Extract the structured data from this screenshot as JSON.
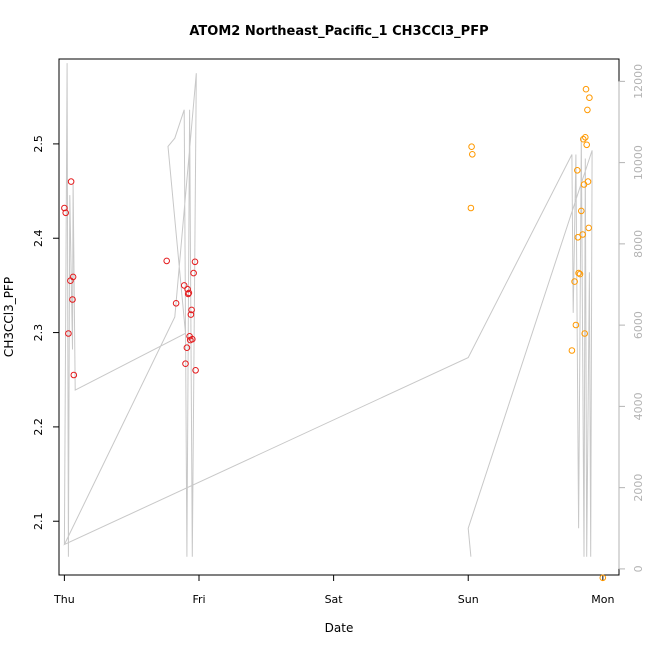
{
  "chart_data": {
    "type": "scatter",
    "title": "ATOM2 Northeast_Pacific_1 CH3CCl3_PFP",
    "xlabel": "Date",
    "ylabel": "CH3CCl3_PFP",
    "x_ticks": [
      "Thu",
      "Fri",
      "Sat",
      "Sun",
      "Mon"
    ],
    "x_range": [
      -0.04,
      4.12
    ],
    "ylim": [
      2.043,
      2.59
    ],
    "y_ticks": [
      2.1,
      2.2,
      2.3,
      2.4,
      2.5
    ],
    "y2lim": [
      -150,
      12550
    ],
    "y2_ticks": [
      0,
      2000,
      4000,
      6000,
      8000,
      10000,
      12000
    ],
    "colors": {
      "series1": "#e41a1c",
      "series2": "#ff9900",
      "altitude": "#c8c8c8",
      "axis": "#000000",
      "axis2": "#b3b3b3"
    },
    "series": [
      {
        "color": "#e41a1c",
        "points": [
          [
            0.0,
            2.432
          ],
          [
            0.01,
            2.427
          ],
          [
            0.03,
            2.299
          ],
          [
            0.045,
            2.355
          ],
          [
            0.05,
            2.46
          ],
          [
            0.06,
            2.335
          ],
          [
            0.065,
            2.359
          ],
          [
            0.07,
            2.255
          ],
          [
            0.76,
            2.376
          ],
          [
            0.83,
            2.331
          ],
          [
            0.89,
            2.35
          ],
          [
            0.9,
            2.267
          ],
          [
            0.91,
            2.284
          ],
          [
            0.915,
            2.346
          ],
          [
            0.92,
            2.341
          ],
          [
            0.925,
            2.342
          ],
          [
            0.93,
            2.296
          ],
          [
            0.935,
            2.292
          ],
          [
            0.94,
            2.319
          ],
          [
            0.945,
            2.324
          ],
          [
            0.95,
            2.293
          ],
          [
            0.96,
            2.363
          ],
          [
            0.97,
            2.375
          ],
          [
            0.975,
            2.26
          ]
        ]
      },
      {
        "color": "#ff9900",
        "points": [
          [
            3.02,
            2.432
          ],
          [
            3.025,
            2.497
          ],
          [
            3.03,
            2.489
          ],
          [
            3.77,
            2.281
          ],
          [
            3.79,
            2.354
          ],
          [
            3.8,
            2.308
          ],
          [
            3.81,
            2.472
          ],
          [
            3.815,
            2.401
          ],
          [
            3.82,
            2.363
          ],
          [
            3.83,
            2.362
          ],
          [
            3.84,
            2.429
          ],
          [
            3.85,
            2.404
          ],
          [
            3.855,
            2.505
          ],
          [
            3.86,
            2.457
          ],
          [
            3.865,
            2.299
          ],
          [
            3.87,
            2.507
          ],
          [
            3.875,
            2.558
          ],
          [
            3.88,
            2.499
          ],
          [
            3.885,
            2.536
          ],
          [
            3.89,
            2.46
          ],
          [
            3.895,
            2.411
          ],
          [
            3.9,
            2.549
          ],
          [
            4.0,
            2.04
          ]
        ]
      }
    ],
    "altitude_line": [
      [
        0.0,
        600
      ],
      [
        0.02,
        12450
      ],
      [
        0.03,
        300
      ],
      [
        0.04,
        9200
      ],
      [
        0.06,
        5400
      ],
      [
        0.065,
        9500
      ],
      [
        0.08,
        4400
      ],
      [
        0.9,
        5800
      ],
      [
        0.77,
        10400
      ],
      [
        0.82,
        10600
      ],
      [
        0.89,
        11300
      ],
      [
        0.91,
        300
      ],
      [
        0.93,
        11300
      ],
      [
        0.95,
        300
      ],
      [
        0.98,
        12200
      ],
      [
        0.82,
        6200
      ],
      [
        0.0,
        600
      ],
      [
        3.0,
        5200
      ],
      [
        3.77,
        10200
      ],
      [
        3.78,
        6300
      ],
      [
        3.8,
        10200
      ],
      [
        3.82,
        1000
      ],
      [
        3.84,
        10600
      ],
      [
        3.86,
        300
      ],
      [
        3.87,
        10100
      ],
      [
        3.88,
        300
      ],
      [
        3.9,
        7300
      ],
      [
        3.91,
        300
      ],
      [
        3.92,
        10300
      ],
      [
        3.0,
        1000
      ],
      [
        3.02,
        300
      ]
    ]
  }
}
